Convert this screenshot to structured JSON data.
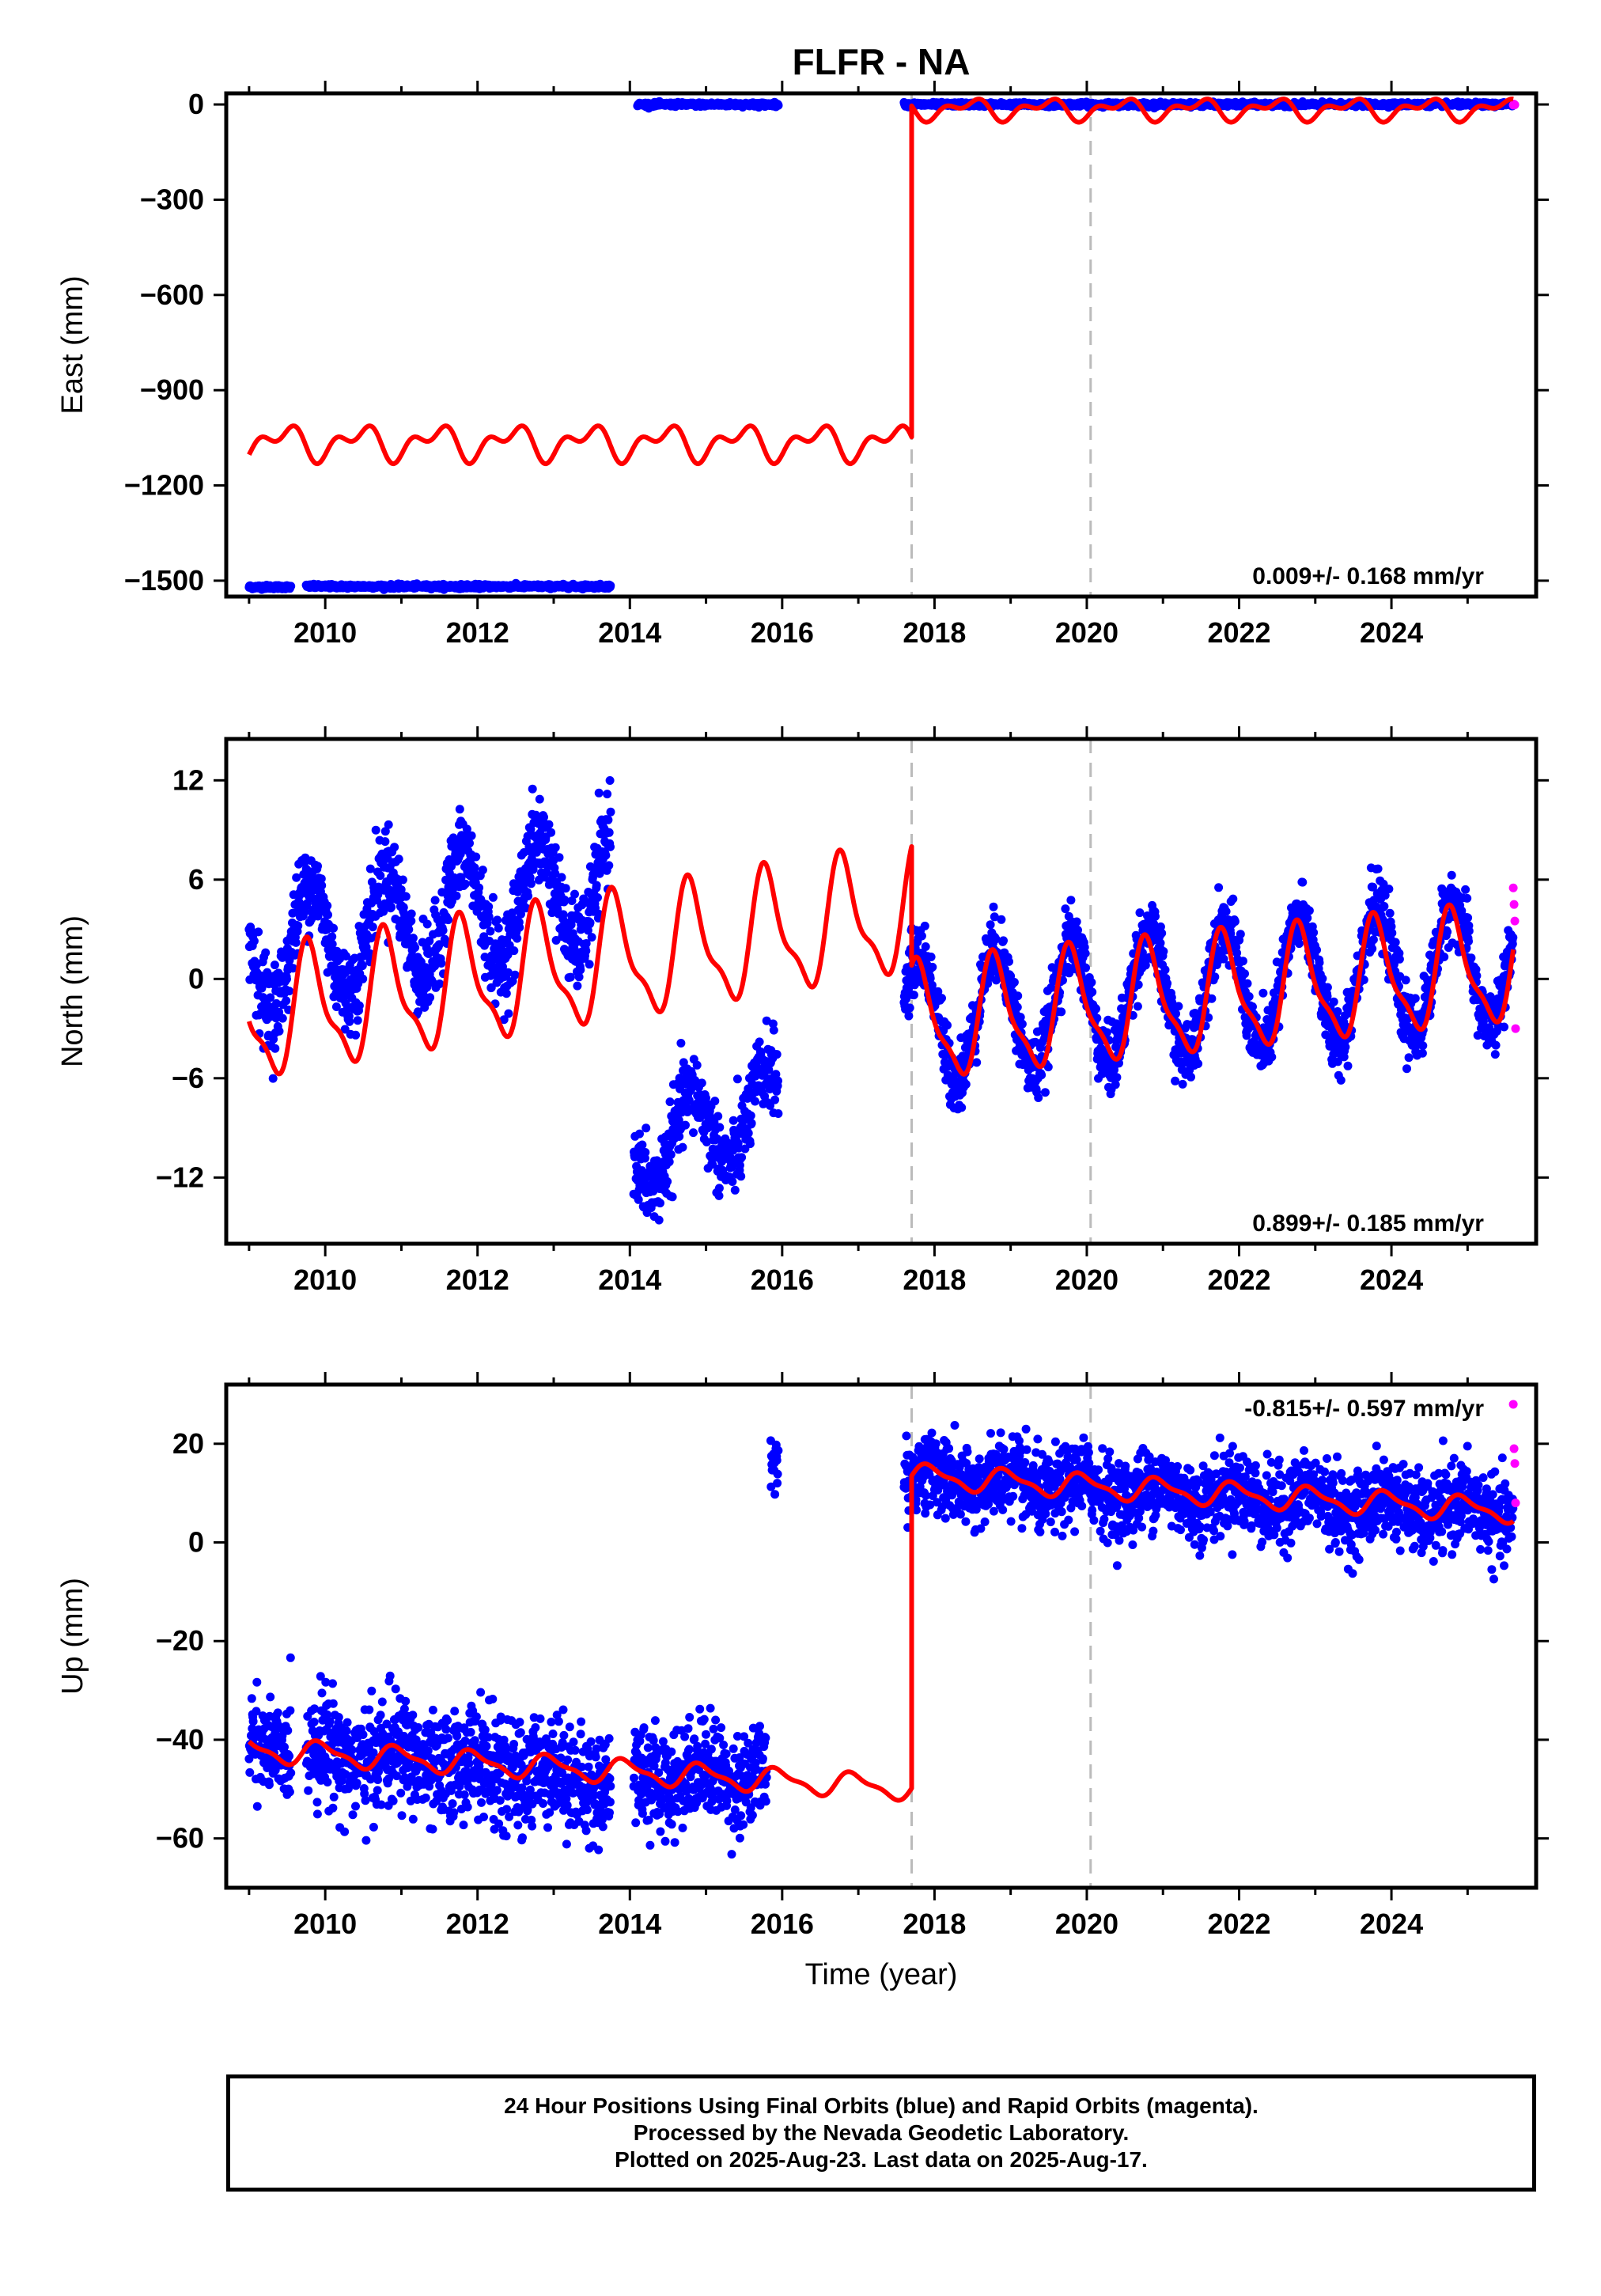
{
  "title": "FLFR - NA",
  "colors": {
    "observations": "#0000ff",
    "rapid": "#ff00ff",
    "model": "#ff0000",
    "event_lines": "#bbbbbb",
    "frame": "#000000"
  },
  "xlabel": "Time (year)",
  "x_ticks": [
    "2010",
    "2012",
    "2014",
    "2016",
    "2018",
    "2020",
    "2022",
    "2024"
  ],
  "footer": {
    "line1": "24 Hour Positions Using Final Orbits (blue) and Rapid Orbits (magenta).",
    "line2": "Processed by the Nevada Geodetic Laboratory.",
    "line3": "Plotted on 2025-Aug-23. Last data on 2025-Aug-17."
  },
  "chart_data": [
    {
      "type": "scatter",
      "panel": "east",
      "ylabel": "East (mm)",
      "rate_label": "0.009+/- 0.168 mm/yr",
      "rate_position": "bottom-right",
      "xlim": [
        2008.7,
        2025.9
      ],
      "ylim": [
        -1550,
        35
      ],
      "y_ticks": [
        "0",
        "−300",
        "−600",
        "−900",
        "−1200",
        "−1500"
      ],
      "y_tick_values": [
        0,
        -300,
        -600,
        -900,
        -1200,
        -1500
      ],
      "event_lines": [
        2017.7,
        2020.05
      ],
      "segments": [
        {
          "start": 2009.0,
          "end": 2009.55,
          "level": -1520,
          "noise": 3
        },
        {
          "start": 2009.75,
          "end": 2013.75,
          "level": -1518,
          "noise": 3
        },
        {
          "start": 2014.1,
          "end": 2015.95,
          "level": 0,
          "noise": 3
        },
        {
          "start": 2017.6,
          "end": 2025.6,
          "level": 0,
          "noise": 3
        }
      ],
      "rapid_points": [
        [
          2025.6,
          -2
        ],
        [
          2025.61,
          1
        ],
        [
          2025.62,
          -1
        ]
      ],
      "model": {
        "pieces": [
          {
            "start": 2009.0,
            "end": 2017.7,
            "base": -1065,
            "slope": 0,
            "a1": 40,
            "p1": 0.2,
            "a2": 30,
            "p2": 0.5
          },
          {
            "start": 2017.7,
            "end": 2025.6,
            "base": -15,
            "slope": 0,
            "a1": 25,
            "p1": 0.2,
            "a2": 18,
            "p2": 0.5
          }
        ]
      }
    },
    {
      "type": "scatter",
      "panel": "north",
      "ylabel": "North (mm)",
      "rate_label": "0.899+/- 0.185 mm/yr",
      "rate_position": "bottom-right",
      "xlim": [
        2008.7,
        2025.9
      ],
      "ylim": [
        -16,
        14.5
      ],
      "y_ticks": [
        "12",
        "6",
        "0",
        "−6",
        "−12"
      ],
      "y_tick_values": [
        12,
        6,
        0,
        -6,
        -12
      ],
      "event_lines": [
        2017.7,
        2020.05
      ],
      "segments": [
        {
          "start": 2009.0,
          "end": 2013.75,
          "level": 1.5,
          "slope": 0.9,
          "amp": 3.5,
          "phase": 0.55,
          "noise": 1.3
        },
        {
          "start": 2014.05,
          "end": 2015.95,
          "level": -10.5,
          "slope": 1.5,
          "amp": 2.5,
          "phase": 0.55,
          "noise": 1.2
        },
        {
          "start": 2017.6,
          "end": 2025.6,
          "level": -2.5,
          "slope": 0.45,
          "amp": 3.8,
          "phase": 0.55,
          "noise": 1.0
        }
      ],
      "rapid_points": [
        [
          2025.6,
          5.5
        ],
        [
          2025.61,
          4.5
        ],
        [
          2025.62,
          3.5
        ],
        [
          2025.63,
          -3
        ]
      ],
      "model": {
        "pieces": [
          {
            "start": 2009.0,
            "end": 2017.7,
            "base": -2.5,
            "slope": 0.75,
            "a1": 3.5,
            "p1": 0.55,
            "a2": 1.2,
            "p2": 0.1
          },
          {
            "start": 2017.7,
            "end": 2025.6,
            "base": -2.8,
            "slope": 0.45,
            "a1": 3.3,
            "p1": 0.55,
            "a2": 1.0,
            "p2": 0.1
          }
        ]
      }
    },
    {
      "type": "scatter",
      "panel": "up",
      "ylabel": "Up (mm)",
      "rate_label": "-0.815+/- 0.597 mm/yr",
      "rate_position": "top-right",
      "xlim": [
        2008.7,
        2025.9
      ],
      "ylim": [
        -70,
        32
      ],
      "y_ticks": [
        "20",
        "0",
        "−20",
        "−40",
        "−60"
      ],
      "y_tick_values": [
        20,
        0,
        -20,
        -40,
        -60
      ],
      "event_lines": [
        2017.7,
        2020.05
      ],
      "segments": [
        {
          "start": 2009.0,
          "end": 2009.55,
          "level": -41,
          "slope": 0,
          "amp": 2,
          "phase": 0.7,
          "noise": 4.5
        },
        {
          "start": 2009.75,
          "end": 2013.75,
          "level": -42,
          "slope": -1.6,
          "amp": 2,
          "phase": 0.7,
          "noise": 5.5
        },
        {
          "start": 2014.05,
          "end": 2015.8,
          "level": -47,
          "slope": 0,
          "amp": 2,
          "phase": 0.7,
          "noise": 5
        },
        {
          "start": 2015.85,
          "end": 2015.95,
          "level": 17,
          "slope": 0,
          "amp": 0,
          "phase": 0,
          "noise": 3
        },
        {
          "start": 2017.6,
          "end": 2025.6,
          "level": 13,
          "slope": -0.9,
          "amp": 2,
          "phase": 0.7,
          "noise": 4
        }
      ],
      "rapid_points": [
        [
          2025.6,
          28
        ],
        [
          2025.61,
          19
        ],
        [
          2025.62,
          16
        ],
        [
          2025.63,
          8
        ]
      ],
      "model": {
        "pieces": [
          {
            "start": 2009.0,
            "end": 2017.7,
            "base": -42,
            "slope": -0.9,
            "a1": 2.2,
            "p1": 0.7,
            "a2": 0.8,
            "p2": 0.2
          },
          {
            "start": 2017.7,
            "end": 2025.6,
            "base": 13.5,
            "slope": -0.9,
            "a1": 2.2,
            "p1": 0.7,
            "a2": 0.8,
            "p2": 0.2
          }
        ]
      }
    }
  ]
}
